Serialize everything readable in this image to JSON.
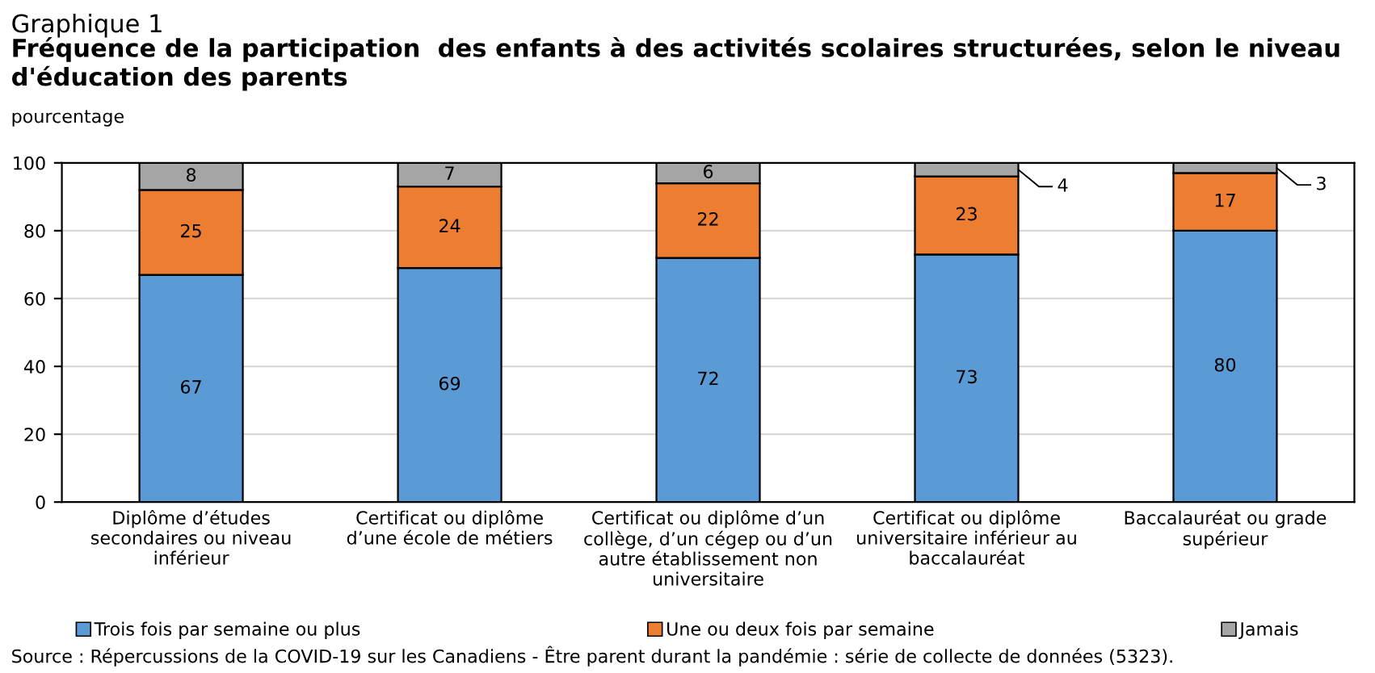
{
  "chart_data": {
    "type": "bar",
    "stacked": true,
    "title": "Graphique 1",
    "subtitle": "Fréquence de la participation  des enfants à des activités scolaires structurées, selon le niveau\nd'éducation des parents",
    "ylabel": "pourcentage",
    "categories": [
      "Diplôme d’études\nsecondaires ou niveau\ninférieur",
      "Certificat ou diplôme\nd’une école de métiers",
      "Certificat ou diplôme d’un\ncollège, d’un cégep ou d’un\nautre établissement non\nuniversitaire",
      "Certificat ou diplôme\nuniversitaire inférieur au\nbaccalauréat",
      "Baccalauréat ou grade\nsupérieur"
    ],
    "series": [
      {
        "name": "Trois fois par semaine ou plus",
        "color": "#5b9bd5",
        "values": [
          67,
          69,
          72,
          73,
          80
        ]
      },
      {
        "name": "Une ou deux fois par semaine",
        "color": "#ed7d31",
        "values": [
          25,
          24,
          22,
          23,
          17
        ]
      },
      {
        "name": "Jamais",
        "color": "#a5a5a5",
        "values": [
          8,
          7,
          6,
          4,
          3
        ]
      }
    ],
    "ylim": [
      0,
      100
    ],
    "yticks": [
      0,
      20,
      40,
      60,
      80,
      100
    ],
    "grid": "y",
    "legend": "bottom",
    "data_labels": true,
    "annotations": [
      "Source : Répercussions de la COVID-19 sur les Canadiens - Être parent durant la pandémie : série de collecte de données (5323)."
    ]
  }
}
